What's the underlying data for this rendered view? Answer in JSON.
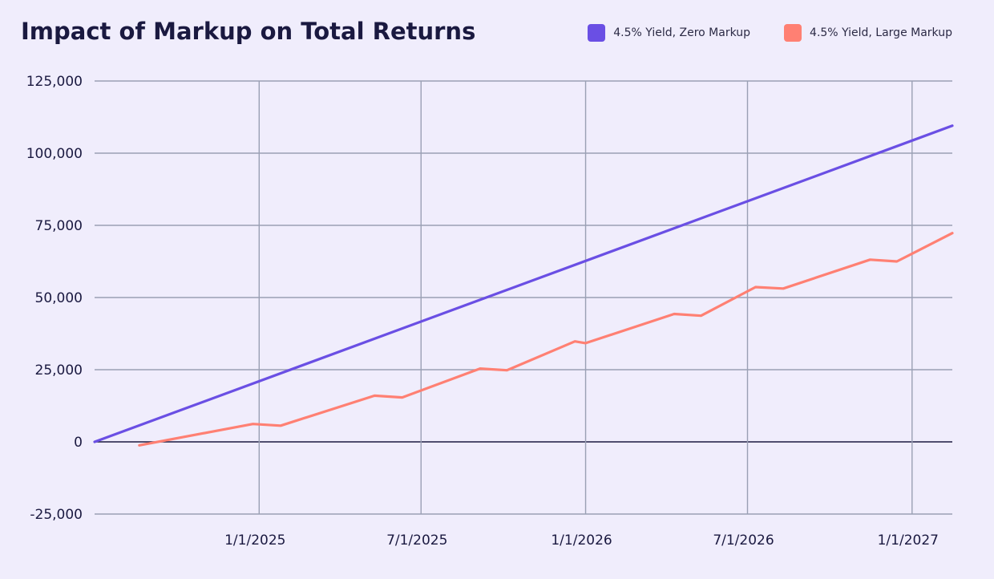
{
  "chart_data": {
    "type": "line",
    "title": "Impact of Markup on Total Returns",
    "xlabel": "",
    "ylabel": "",
    "ylim": [
      -25000,
      125000
    ],
    "xlim": [
      "2024-07-01",
      "2027-02-15"
    ],
    "y_ticks": [
      -25000,
      0,
      25000,
      50000,
      75000,
      100000,
      125000
    ],
    "y_tick_labels": [
      "-25,000",
      "0",
      "25,000",
      "50,000",
      "75,000",
      "100,000",
      "125,000"
    ],
    "x_ticks": [
      "2025-01-01",
      "2025-07-01",
      "2026-01-01",
      "2026-07-01",
      "2027-01-01"
    ],
    "x_tick_labels": [
      "1/1/2025",
      "7/1/2025",
      "1/1/2026",
      "7/1/2026",
      "1/1/2027"
    ],
    "grid": true,
    "legend_position": "top-right",
    "series": [
      {
        "name": "4.5% Yield, Zero Markup",
        "color": "#6a4fe4",
        "points": [
          [
            "2024-07-01",
            0
          ],
          [
            "2027-02-15",
            109500
          ]
        ]
      },
      {
        "name": "4.5% Yield, Large Markup",
        "color": "#ff8073",
        "points": [
          [
            "2024-08-20",
            -1200
          ],
          [
            "2024-12-25",
            6200
          ],
          [
            "2025-01-25",
            5600
          ],
          [
            "2025-05-10",
            16000
          ],
          [
            "2025-06-10",
            15400
          ],
          [
            "2025-09-05",
            25400
          ],
          [
            "2025-10-05",
            24800
          ],
          [
            "2025-12-20",
            34800
          ],
          [
            "2026-01-01",
            34200
          ],
          [
            "2026-04-10",
            44300
          ],
          [
            "2026-05-10",
            43700
          ],
          [
            "2026-07-10",
            53600
          ],
          [
            "2026-08-10",
            53100
          ],
          [
            "2026-11-15",
            63100
          ],
          [
            "2026-12-15",
            62500
          ],
          [
            "2027-02-15",
            72300
          ]
        ]
      }
    ]
  }
}
